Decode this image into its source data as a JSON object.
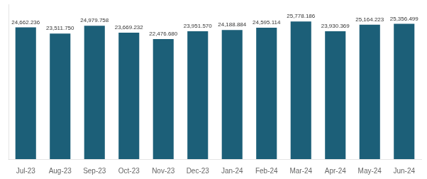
{
  "chart_data": {
    "type": "bar",
    "categories": [
      "Jul-23",
      "Aug-23",
      "Sep-23",
      "Oct-23",
      "Nov-23",
      "Dec-23",
      "Jan-24",
      "Feb-24",
      "Mar-24",
      "Apr-24",
      "May-24",
      "Jun-24"
    ],
    "values": [
      24662.236,
      23511.75,
      24979.758,
      23669.232,
      22476.68,
      23951.57,
      24188.884,
      24595.114,
      25778.186,
      23930.369,
      25164.223,
      25356.499
    ],
    "value_labels": [
      "24,662.236",
      "23,511.750",
      "24,979.758",
      "23,669.232",
      "22,476.680",
      "23,951.570",
      "24,188.884",
      "24,595.114",
      "25,778.186",
      "23,930.369",
      "25,164.223",
      "25,356.499"
    ],
    "data_labels": true,
    "color": "#1c5f78",
    "ylim": [
      0,
      29000
    ],
    "yticks": [],
    "grid": false,
    "tick_labels": "x"
  }
}
